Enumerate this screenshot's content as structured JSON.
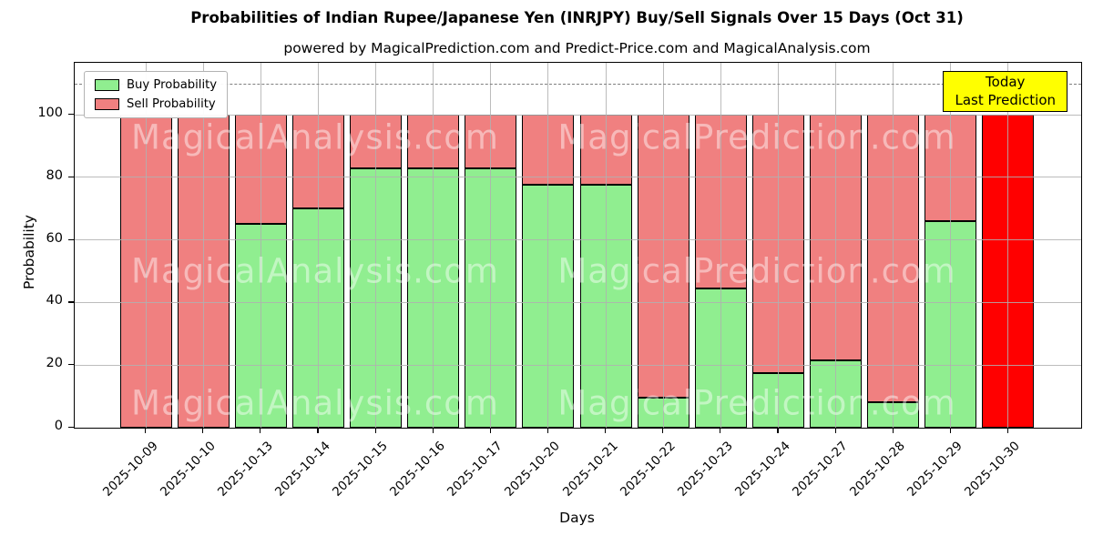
{
  "title": "Probabilities of Indian Rupee/Japanese Yen (INRJPY) Buy/Sell Signals Over 15 Days (Oct 31)",
  "subtitle": "powered by MagicalPrediction.com and Predict-Price.com and MagicalAnalysis.com",
  "legend": {
    "items": [
      {
        "label": "Buy Probability",
        "color": "#90ee90"
      },
      {
        "label": "Sell Probability",
        "color": "#f08080"
      }
    ]
  },
  "annotation_box": {
    "line1": "Today",
    "line2": "Last Prediction",
    "bg": "#ffff00"
  },
  "watermarks": {
    "left_text": "MagicalAnalysis.com",
    "right_text": "MagicalPrediction.com"
  },
  "axes": {
    "xlabel": "Days",
    "ylabel": "Probability",
    "yticks": [
      0,
      20,
      40,
      60,
      80,
      100
    ]
  },
  "colors": {
    "buy": "#90ee90",
    "sell": "#f08080",
    "today_bar": "#ff0000",
    "bar_edge": "#000000",
    "grid": "#b0b0b0",
    "dashed_line": "#7f7f7f",
    "annotation_bg": "#ffff00"
  },
  "chart_data": {
    "type": "bar",
    "stacked": true,
    "title": "Probabilities of Indian Rupee/Japanese Yen (INRJPY) Buy/Sell Signals Over 15 Days (Oct 31)",
    "xlabel": "Days",
    "ylabel": "Probability",
    "categories": [
      "2025-10-09",
      "2025-10-10",
      "2025-10-13",
      "2025-10-14",
      "2025-10-15",
      "2025-10-16",
      "2025-10-17",
      "2025-10-20",
      "2025-10-21",
      "2025-10-22",
      "2025-10-23",
      "2025-10-24",
      "2025-10-27",
      "2025-10-28",
      "2025-10-29",
      "2025-10-30"
    ],
    "series": [
      {
        "name": "Buy Probability",
        "color": "#90ee90",
        "values": [
          0,
          0,
          65,
          70,
          83,
          83,
          83,
          77.5,
          77.5,
          9.5,
          44.5,
          17.5,
          21.5,
          8,
          66,
          0
        ]
      },
      {
        "name": "Sell Probability",
        "color": "#f08080",
        "values": [
          100,
          100,
          35,
          30,
          17,
          17,
          17,
          22.5,
          22.5,
          90.5,
          55.5,
          82.5,
          78.5,
          92,
          34,
          100
        ]
      }
    ],
    "today_index": 15,
    "today_color": "#ff0000",
    "ylim": [
      0,
      116.6
    ],
    "dashed_line_y": 110,
    "grid": true,
    "legend_position": "upper left"
  }
}
